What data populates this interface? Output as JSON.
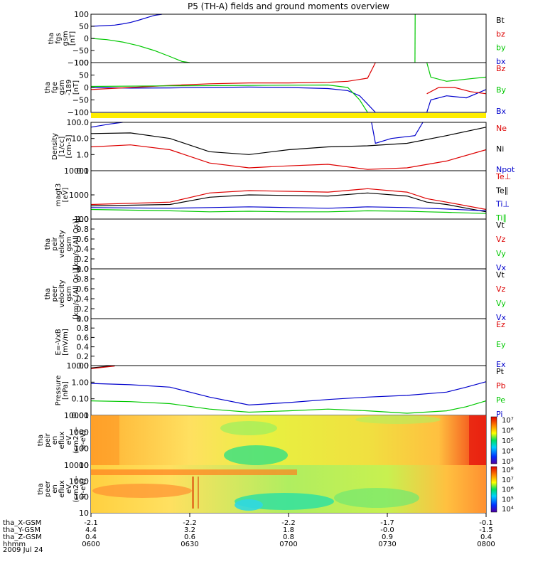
{
  "title": "P5 (TH-A) fields and ground moments overview",
  "date_label": "2009 Jul 24",
  "colors": {
    "black": "#000000",
    "red": "#dd0000",
    "green": "#00c800",
    "blue": "#0000cc",
    "yellow": "#ffee00"
  },
  "chart_data": [
    {
      "id": "fgs",
      "type": "line",
      "ylabel": [
        "tha",
        "fgs",
        "gsm",
        "[nT]"
      ],
      "yticks": [
        "100",
        "50",
        "0",
        "−50",
        "−100"
      ],
      "ylim": [
        -100,
        100
      ],
      "legend": [
        {
          "name": "Bt",
          "color": "black"
        },
        {
          "name": "bz",
          "color": "red"
        },
        {
          "name": "by",
          "color": "green"
        },
        {
          "name": "bx",
          "color": "blue"
        }
      ],
      "series": [
        {
          "name": "bx",
          "color": "blue",
          "t": [
            0,
            6,
            8,
            10,
            12,
            14,
            16,
            18
          ],
          "v": [
            50,
            55,
            60,
            66,
            75,
            85,
            95,
            100
          ]
        },
        {
          "name": "by",
          "color": "green",
          "t": [
            0,
            4,
            8,
            12,
            16,
            20,
            23,
            25
          ],
          "v": [
            0,
            -5,
            -15,
            -30,
            -50,
            -75,
            -95,
            -100
          ]
        },
        {
          "name": "by",
          "color": "green",
          "t": [
            82,
            82.05
          ],
          "v": [
            -100,
            100
          ]
        }
      ]
    },
    {
      "id": "fge",
      "type": "line",
      "ylabel": [
        "tha",
        "fge",
        "gsm",
        "-189",
        "[nT]"
      ],
      "yticks": [
        "100",
        "50",
        "0",
        "−50",
        "−100"
      ],
      "ylim": [
        -120,
        120
      ],
      "legend": [
        {
          "name": "Bz",
          "color": "red"
        },
        {
          "name": "By",
          "color": "green"
        },
        {
          "name": "Bx",
          "color": "blue"
        }
      ],
      "series": [
        {
          "name": "Bx",
          "color": "blue",
          "t": [
            0,
            10,
            20,
            30,
            40,
            50,
            60,
            65,
            68,
            70,
            72
          ],
          "v": [
            0,
            -3,
            -2,
            0,
            2,
            0,
            -5,
            -15,
            -40,
            -80,
            -120
          ]
        },
        {
          "name": "Bx",
          "color": "blue",
          "t": [
            85,
            86,
            90,
            95,
            100
          ],
          "v": [
            -120,
            -60,
            -40,
            -50,
            -10
          ]
        },
        {
          "name": "Bz",
          "color": "red",
          "t": [
            0,
            10,
            20,
            30,
            40,
            50,
            60,
            65,
            70,
            72
          ],
          "v": [
            -10,
            0,
            10,
            18,
            22,
            22,
            25,
            30,
            45,
            120
          ]
        },
        {
          "name": "Bz",
          "color": "red",
          "t": [
            85,
            88,
            92,
            96,
            100
          ],
          "v": [
            -30,
            0,
            0,
            -20,
            -30
          ]
        },
        {
          "name": "By",
          "color": "green",
          "t": [
            0,
            20,
            40,
            60,
            65,
            68,
            70
          ],
          "v": [
            5,
            8,
            10,
            12,
            0,
            -60,
            -120
          ]
        },
        {
          "name": "By",
          "color": "green",
          "t": [
            85,
            86,
            90,
            95,
            100
          ],
          "v": [
            120,
            50,
            30,
            40,
            50
          ]
        }
      ]
    },
    {
      "id": "density",
      "type": "line",
      "log": true,
      "ylabel": [
        "Density",
        "[1/cc]",
        "[cm-3]"
      ],
      "yticks": [
        "100.0",
        "10.0",
        "1.0",
        "0.1"
      ],
      "ylim": [
        0.1,
        100
      ],
      "legend": [
        {
          "name": "Ne",
          "color": "red"
        },
        {
          "name": "Ni",
          "color": "black"
        },
        {
          "name": "Npot",
          "color": "blue"
        }
      ],
      "series": [
        {
          "name": "Ni",
          "color": "black",
          "t": [
            0,
            10,
            20,
            30,
            40,
            50,
            60,
            70,
            80,
            90,
            100
          ],
          "v": [
            20,
            22,
            10,
            1.5,
            1,
            2,
            3,
            3.5,
            5,
            15,
            50
          ]
        },
        {
          "name": "Ne",
          "color": "red",
          "t": [
            0,
            10,
            20,
            30,
            40,
            50,
            60,
            70,
            80,
            90,
            100
          ],
          "v": [
            3,
            4,
            2,
            0.3,
            0.15,
            0.2,
            0.25,
            0.12,
            0.15,
            0.4,
            2
          ]
        },
        {
          "name": "Npot",
          "color": "blue",
          "t": [
            0,
            5,
            8
          ],
          "v": [
            50,
            80,
            100
          ]
        },
        {
          "name": "Npot",
          "color": "blue",
          "t": [
            71,
            72,
            76,
            82,
            84
          ],
          "v": [
            100,
            5,
            10,
            15,
            100
          ]
        }
      ]
    },
    {
      "id": "temperature",
      "type": "line",
      "log": true,
      "ylabel": [
        "magt3",
        "[eV]"
      ],
      "yticks": [
        "10000",
        "1000",
        "100"
      ],
      "ylim": [
        100,
        10000
      ],
      "legend": [
        {
          "name": "Te⊥",
          "color": "red"
        },
        {
          "name": "Te∥",
          "color": "black"
        },
        {
          "name": "Ti⊥",
          "color": "blue"
        },
        {
          "name": "Ti∥",
          "color": "green"
        }
      ],
      "series": [
        {
          "name": "Te⊥",
          "color": "red",
          "t": [
            0,
            20,
            30,
            40,
            50,
            60,
            70,
            80,
            85,
            90,
            100
          ],
          "v": [
            400,
            500,
            1200,
            1500,
            1400,
            1300,
            1800,
            1300,
            700,
            500,
            250
          ]
        },
        {
          "name": "Te∥",
          "color": "black",
          "t": [
            0,
            20,
            30,
            40,
            50,
            60,
            70,
            80,
            85,
            90,
            100
          ],
          "v": [
            350,
            400,
            800,
            1000,
            950,
            900,
            1200,
            900,
            500,
            400,
            200
          ]
        },
        {
          "name": "Ti⊥",
          "color": "blue",
          "t": [
            0,
            20,
            30,
            40,
            50,
            60,
            70,
            80,
            85,
            90,
            100
          ],
          "v": [
            300,
            280,
            300,
            320,
            300,
            280,
            320,
            300,
            280,
            260,
            220
          ]
        },
        {
          "name": "Ti∥",
          "color": "green",
          "t": [
            0,
            20,
            30,
            40,
            50,
            60,
            70,
            80,
            85,
            90,
            100
          ],
          "v": [
            250,
            220,
            200,
            210,
            200,
            200,
            220,
            210,
            200,
            190,
            170
          ]
        }
      ]
    },
    {
      "id": "peir_velocity",
      "type": "line",
      "ylabel": [
        "tha",
        "peir",
        "velocity",
        "gsm",
        "[km/s (All Qs)]"
      ],
      "yticks": [
        "1.0",
        "0.8",
        "0.6",
        "0.4",
        "0.2",
        "0.0"
      ],
      "ylim": [
        0,
        1
      ],
      "legend": [
        {
          "name": "Vt",
          "color": "black"
        },
        {
          "name": "Vz",
          "color": "red"
        },
        {
          "name": "Vy",
          "color": "green"
        },
        {
          "name": "Vx",
          "color": "blue"
        }
      ],
      "series": []
    },
    {
      "id": "peer_velocity",
      "type": "line",
      "ylabel": [
        "tha",
        "peer",
        "velocity",
        "gsm",
        "[km/s (All Qs)]"
      ],
      "yticks": [
        "1.0",
        "0.8",
        "0.6",
        "0.4",
        "0.2",
        "0.0"
      ],
      "ylim": [
        0,
        1
      ],
      "legend": [
        {
          "name": "Vt",
          "color": "black"
        },
        {
          "name": "Vz",
          "color": "red"
        },
        {
          "name": "Vy",
          "color": "green"
        },
        {
          "name": "Vx",
          "color": "blue"
        }
      ],
      "series": []
    },
    {
      "id": "efield",
      "type": "line",
      "ylabel": [
        "E=-VxB",
        "[mV/m]"
      ],
      "yticks": [
        "1.0",
        "0.8",
        "0.6",
        "0.4",
        "0.2",
        "0.0"
      ],
      "ylim": [
        0,
        1
      ],
      "legend": [
        {
          "name": "Ez",
          "color": "red"
        },
        {
          "name": "Ey",
          "color": "green"
        },
        {
          "name": "Ex",
          "color": "blue"
        }
      ],
      "series": []
    },
    {
      "id": "pressure",
      "type": "line",
      "log": true,
      "ylabel": [
        "Pressure",
        "[nPa]"
      ],
      "yticks": [
        "10.00",
        "1.00",
        "0.10",
        "0.01"
      ],
      "ylim": [
        0.007,
        30
      ],
      "legend": [
        {
          "name": "Pt",
          "color": "black"
        },
        {
          "name": "Pb",
          "color": "red"
        },
        {
          "name": "Pe",
          "color": "green"
        },
        {
          "name": "Pi",
          "color": "blue"
        }
      ],
      "series": [
        {
          "name": "Pt",
          "color": "black",
          "t": [
            0,
            6
          ],
          "v": [
            20,
            30
          ]
        },
        {
          "name": "Pb",
          "color": "red",
          "t": [
            0,
            6
          ],
          "v": [
            18,
            28
          ]
        },
        {
          "name": "Pi",
          "color": "blue",
          "t": [
            0,
            10,
            20,
            30,
            40,
            50,
            60,
            70,
            80,
            90,
            95,
            100
          ],
          "v": [
            1.5,
            1.2,
            0.8,
            0.15,
            0.04,
            0.06,
            0.1,
            0.15,
            0.2,
            0.35,
            0.8,
            2
          ]
        },
        {
          "name": "Pe",
          "color": "green",
          "t": [
            0,
            10,
            20,
            30,
            40,
            50,
            60,
            70,
            80,
            90,
            95,
            100
          ],
          "v": [
            0.08,
            0.07,
            0.05,
            0.02,
            0.012,
            0.015,
            0.02,
            0.015,
            0.01,
            0.015,
            0.03,
            0.08
          ]
        }
      ]
    },
    {
      "id": "peir_eflux",
      "type": "heatmap",
      "ylabel": [
        "tha",
        "peir",
        "en",
        "eflux",
        "eV",
        "(cm2-s-",
        "sr-eV)"
      ],
      "yticks": [
        "10000",
        "1000",
        "100",
        "10"
      ],
      "colorbar": [
        "10⁷",
        "10⁶",
        "10⁵",
        "10⁴",
        "10³"
      ]
    },
    {
      "id": "peer_eflux",
      "type": "heatmap",
      "ylabel": [
        "tha",
        "peer",
        "en",
        "eflux",
        "eV",
        "(cm2-s-",
        "sr-eV)"
      ],
      "yticks": [
        "10000",
        "1000",
        "100",
        "10"
      ],
      "colorbar": [
        "10⁸",
        "10⁷",
        "10⁶",
        "10⁵",
        "10⁴"
      ]
    }
  ],
  "time_axis": {
    "labels": [
      "tha_X-GSM",
      "tha_Y-GSM",
      "tha_Z-GSM",
      "hhmm"
    ],
    "columns": [
      [
        "-2.1",
        "4.4",
        "0.4",
        "0600"
      ],
      [
        "-2.2",
        "3.2",
        "0.6",
        "0630"
      ],
      [
        "-2.2",
        "1.8",
        "0.8",
        "0700"
      ],
      [
        "-1.7",
        "-0.0",
        "0.9",
        "0730"
      ],
      [
        "-0.1",
        "-1.5",
        "0.4",
        "0800"
      ]
    ]
  }
}
